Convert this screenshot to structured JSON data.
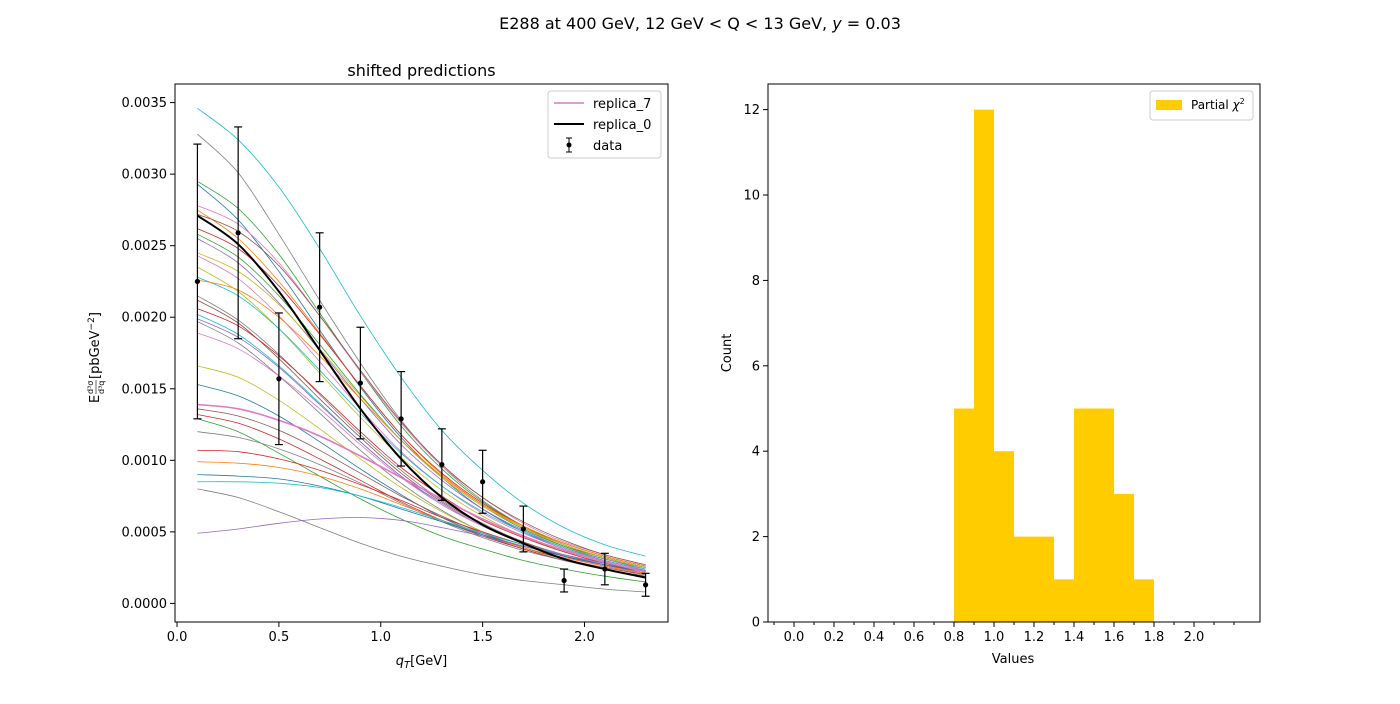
{
  "figure": {
    "suptitle_prefix": "E288  at 400 GeV, 12 GeV < Q < 13 GeV, ",
    "suptitle_var": "y",
    "suptitle_suffix": " = 0.03"
  },
  "chart_data": [
    {
      "type": "line",
      "title": "shifted predictions",
      "xlabel_var": "q",
      "xlabel_sub": "T",
      "xlabel_unit": "[GeV]",
      "ylabel_base": "E",
      "ylabel_frac_num": "d³σ",
      "ylabel_frac_den": "d³q",
      "ylabel_unit_main": "[pbGeV",
      "ylabel_unit_sup": "−2",
      "ylabel_unit_close": "]",
      "xlim": [
        -0.01,
        2.41
      ],
      "ylim": [
        -0.00013,
        0.00363
      ],
      "xticks": [
        0.0,
        0.5,
        1.0,
        1.5,
        2.0
      ],
      "xtick_labels": [
        "0.0",
        "0.5",
        "1.0",
        "1.5",
        "2.0"
      ],
      "yticks": [
        0.0,
        0.0005,
        0.001,
        0.0015,
        0.002,
        0.0025,
        0.003,
        0.0035
      ],
      "ytick_labels": [
        "0.0000",
        "0.0005",
        "0.0010",
        "0.0015",
        "0.0020",
        "0.0025",
        "0.0030",
        "0.0035"
      ],
      "x": [
        0.1,
        0.3,
        0.5,
        0.7,
        0.9,
        1.1,
        1.3,
        1.5,
        1.7,
        1.9,
        2.1,
        2.3
      ],
      "legend_position": "upper-right",
      "legend": [
        {
          "label": "replica_7",
          "color": "#e377c2",
          "kind": "line"
        },
        {
          "label": "replica_0",
          "color": "#000000",
          "kind": "line"
        },
        {
          "label": "data",
          "color": "#000000",
          "kind": "errorbar"
        }
      ],
      "data_points": {
        "y": [
          0.00225,
          0.00259,
          0.00157,
          0.00207,
          0.00154,
          0.00129,
          0.00097,
          0.00085,
          0.00052,
          0.00016,
          0.00024,
          0.00013
        ],
        "yerr": [
          0.00096,
          0.00074,
          0.00046,
          0.00052,
          0.00039,
          0.00033,
          0.00025,
          0.00022,
          0.00016,
          8e-05,
          0.00011,
          8e-05
        ]
      },
      "highlight_series": [
        {
          "name": "replica_0",
          "color": "#000000",
          "values": [
            0.00271,
            0.00251,
            0.00218,
            0.00177,
            0.00136,
            0.00101,
            0.00074,
            0.00055,
            0.00042,
            0.00031,
            0.00024,
            0.00018
          ]
        },
        {
          "name": "replica_7",
          "color": "#e377c2",
          "values": [
            0.00139,
            0.00136,
            0.00128,
            0.00117,
            0.00103,
            0.00088,
            0.00073,
            0.00059,
            0.00047,
            0.00037,
            0.00029,
            0.00022
          ]
        }
      ],
      "series": [
        {
          "color": "#17becf",
          "values": [
            0.00346,
            0.00324,
            0.00291,
            0.00248,
            0.00201,
            0.00158,
            0.00121,
            0.00093,
            0.0007,
            0.00053,
            0.00041,
            0.00033
          ]
        },
        {
          "color": "#7f7f7f",
          "values": [
            0.00328,
            0.00301,
            0.00258,
            0.00212,
            0.00168,
            0.00128,
            0.00096,
            0.00072,
            0.00054,
            0.00041,
            0.00032,
            0.00025
          ]
        },
        {
          "color": "#2ca02c",
          "values": [
            0.00295,
            0.00276,
            0.00244,
            0.00203,
            0.00162,
            0.00124,
            0.00094,
            0.00071,
            0.00054,
            0.00041,
            0.00032,
            0.00025
          ]
        },
        {
          "color": "#1f77b4",
          "values": [
            0.00293,
            0.00268,
            0.00232,
            0.00191,
            0.00151,
            0.00116,
            0.00088,
            0.00066,
            0.0005,
            0.00038,
            0.0003,
            0.00023
          ]
        },
        {
          "color": "#e377c2",
          "values": [
            0.00278,
            0.00265,
            0.00238,
            0.00201,
            0.00162,
            0.00126,
            0.00096,
            0.00074,
            0.00056,
            0.00043,
            0.00034,
            0.00027
          ]
        },
        {
          "color": "#ff7f0e",
          "values": [
            0.00275,
            0.00255,
            0.00225,
            0.00189,
            0.00152,
            0.00118,
            0.0009,
            0.00069,
            0.00053,
            0.0004,
            0.00031,
            0.00025
          ]
        },
        {
          "color": "#8c564b",
          "values": [
            0.00272,
            0.0026,
            0.00236,
            0.00201,
            0.00163,
            0.00127,
            0.00097,
            0.00074,
            0.00057,
            0.00044,
            0.00034,
            0.00027
          ]
        },
        {
          "color": "#d62728",
          "values": [
            0.00262,
            0.00248,
            0.00222,
            0.00188,
            0.00152,
            0.00118,
            0.00091,
            0.0007,
            0.00054,
            0.00042,
            0.00033,
            0.00026
          ]
        },
        {
          "color": "#2ca02c",
          "values": [
            0.00258,
            0.00242,
            0.00215,
            0.00181,
            0.00146,
            0.00114,
            0.00088,
            0.00068,
            0.00052,
            0.0004,
            0.00032,
            0.00025
          ]
        },
        {
          "color": "#9467bd",
          "values": [
            0.00255,
            0.00238,
            0.0021,
            0.00177,
            0.00143,
            0.00111,
            0.00086,
            0.00066,
            0.00051,
            0.00039,
            0.00031,
            0.00024
          ]
        },
        {
          "color": "#bcbd22",
          "values": [
            0.00245,
            0.00232,
            0.00209,
            0.00178,
            0.00145,
            0.00114,
            0.00088,
            0.00068,
            0.00053,
            0.00041,
            0.00032,
            0.00025
          ]
        },
        {
          "color": "#e377c2",
          "values": [
            0.00243,
            0.00227,
            0.00201,
            0.00169,
            0.00136,
            0.00106,
            0.00082,
            0.00063,
            0.00049,
            0.00038,
            0.0003,
            0.00023
          ]
        },
        {
          "color": "#bcbd22",
          "values": [
            0.00235,
            0.00218,
            0.00192,
            0.00161,
            0.0013,
            0.00102,
            0.00079,
            0.00061,
            0.00047,
            0.00036,
            0.00028,
            0.00022
          ]
        },
        {
          "color": "#17becf",
          "values": [
            0.00228,
            0.00215,
            0.00192,
            0.00163,
            0.00133,
            0.00105,
            0.00082,
            0.00064,
            0.0005,
            0.00039,
            0.0003,
            0.00024
          ]
        },
        {
          "color": "#ff7f0e",
          "values": [
            0.00226,
            0.00219,
            0.002,
            0.00173,
            0.00143,
            0.00114,
            0.00089,
            0.00069,
            0.00054,
            0.00042,
            0.00033,
            0.00026
          ]
        },
        {
          "color": "#7f7f7f",
          "values": [
            0.00215,
            0.00198,
            0.00174,
            0.00146,
            0.00118,
            0.00093,
            0.00072,
            0.00056,
            0.00043,
            0.00034,
            0.00027,
            0.00021
          ]
        },
        {
          "color": "#8c564b",
          "values": [
            0.00212,
            0.00196,
            0.00171,
            0.00143,
            0.00116,
            0.00091,
            0.00071,
            0.00055,
            0.00043,
            0.00033,
            0.00026,
            0.00021
          ]
        },
        {
          "color": "#d62728",
          "values": [
            0.00206,
            0.00194,
            0.00173,
            0.00147,
            0.0012,
            0.00095,
            0.00075,
            0.00058,
            0.00046,
            0.00036,
            0.00028,
            0.00022
          ]
        },
        {
          "color": "#17becf",
          "values": [
            0.00202,
            0.00188,
            0.00166,
            0.0014,
            0.00113,
            0.00089,
            0.00069,
            0.00054,
            0.00042,
            0.00033,
            0.00026,
            0.0002
          ]
        },
        {
          "color": "#9467bd",
          "values": [
            0.00199,
            0.00186,
            0.00165,
            0.00139,
            0.00113,
            0.00089,
            0.0007,
            0.00054,
            0.00042,
            0.00033,
            0.00026,
            0.0002
          ]
        },
        {
          "color": "#7f7f7f",
          "values": [
            0.00197,
            0.00182,
            0.00159,
            0.00133,
            0.00107,
            0.00084,
            0.00065,
            0.0005,
            0.00039,
            0.00031,
            0.00024,
            0.00019
          ]
        },
        {
          "color": "#e377c2",
          "values": [
            0.00189,
            0.00178,
            0.00159,
            0.00136,
            0.00111,
            0.00088,
            0.00069,
            0.00054,
            0.00042,
            0.00033,
            0.00026,
            0.0002
          ]
        },
        {
          "color": "#bcbd22",
          "values": [
            0.00166,
            0.00158,
            0.00142,
            0.00122,
            0.00101,
            0.00081,
            0.00064,
            0.0005,
            0.00039,
            0.00031,
            0.00024,
            0.00019
          ]
        },
        {
          "color": "#1f77b4",
          "values": [
            0.00153,
            0.00145,
            0.00131,
            0.00113,
            0.00094,
            0.00076,
            0.0006,
            0.00048,
            0.00038,
            0.0003,
            0.00024,
            0.00019
          ]
        },
        {
          "color": "#8c564b",
          "values": [
            0.00136,
            0.00131,
            0.00121,
            0.00107,
            0.00091,
            0.00075,
            0.00061,
            0.00049,
            0.00039,
            0.00031,
            0.00025,
            0.0002
          ]
        },
        {
          "color": "#d62728",
          "values": [
            0.00132,
            0.00126,
            0.00115,
            0.00101,
            0.00086,
            0.00071,
            0.00058,
            0.00047,
            0.00038,
            0.0003,
            0.00024,
            0.00019
          ]
        },
        {
          "color": "#2ca02c",
          "values": [
            0.00129,
            0.0012,
            0.00105,
            0.00089,
            0.00073,
            0.00059,
            0.00047,
            0.00038,
            0.0003,
            0.00024,
            0.00019,
            0.00015
          ]
        },
        {
          "color": "#7f7f7f",
          "values": [
            0.0012,
            0.00116,
            0.00108,
            0.00097,
            0.00084,
            0.0007,
            0.00057,
            0.00046,
            0.00037,
            0.0003,
            0.00024,
            0.00019
          ]
        },
        {
          "color": "#d62728",
          "values": [
            0.00107,
            0.00106,
            0.00101,
            0.00093,
            0.00083,
            0.00072,
            0.0006,
            0.0005,
            0.00041,
            0.00033,
            0.00027,
            0.00022
          ]
        },
        {
          "color": "#ff7f0e",
          "values": [
            0.00099,
            0.00098,
            0.00095,
            0.00089,
            0.0008,
            0.00069,
            0.00058,
            0.00048,
            0.00039,
            0.00032,
            0.00026,
            0.00021
          ]
        },
        {
          "color": "#1f77b4",
          "values": [
            0.0009,
            0.00089,
            0.00087,
            0.00082,
            0.00075,
            0.00066,
            0.00057,
            0.00048,
            0.0004,
            0.00033,
            0.00027,
            0.00022
          ]
        },
        {
          "color": "#17becf",
          "values": [
            0.00085,
            0.00085,
            0.00084,
            0.00081,
            0.00075,
            0.00067,
            0.00058,
            0.00049,
            0.00041,
            0.00034,
            0.00028,
            0.00023
          ]
        },
        {
          "color": "#7f7f7f",
          "values": [
            0.0008,
            0.00074,
            0.00064,
            0.00053,
            0.00042,
            0.00033,
            0.00026,
            0.0002,
            0.00016,
            0.00013,
            0.0001,
            8e-05
          ]
        },
        {
          "color": "#9467bd",
          "values": [
            0.00049,
            0.00052,
            0.00056,
            0.00059,
            0.0006,
            0.00058,
            0.00053,
            0.00047,
            0.0004,
            0.00034,
            0.00028,
            0.00023
          ]
        }
      ]
    },
    {
      "type": "bar",
      "title": "",
      "xlabel": "Values",
      "ylabel": "Count",
      "xlim": [
        -0.13,
        2.33
      ],
      "ylim": [
        0,
        12.6
      ],
      "xticks": [
        0.0,
        0.2,
        0.4,
        0.6,
        0.8,
        1.0,
        1.2,
        1.4,
        1.6,
        1.8,
        2.0
      ],
      "xtick_labels": [
        "0.0",
        "0.2",
        "0.4",
        "0.6",
        "0.8",
        "1.0",
        "1.2",
        "1.4",
        "1.6",
        "1.8",
        "2.0"
      ],
      "xminor_ticks": [
        -0.1,
        0.1,
        0.3,
        0.5,
        0.7,
        0.9,
        1.1,
        1.3,
        1.5,
        1.7,
        1.9,
        2.1,
        2.2
      ],
      "yticks": [
        0,
        2,
        4,
        6,
        8,
        10,
        12
      ],
      "ytick_labels": [
        "0",
        "2",
        "4",
        "6",
        "8",
        "10",
        "12"
      ],
      "bar_color": "#ffcc00",
      "legend_position": "upper-right",
      "legend_label_base": "Partial ",
      "legend_label_var": "χ",
      "legend_label_sup": "2",
      "bins": [
        {
          "x0": 0.8,
          "x1": 0.9,
          "count": 5
        },
        {
          "x0": 0.9,
          "x1": 1.0,
          "count": 12
        },
        {
          "x0": 1.0,
          "x1": 1.1,
          "count": 4
        },
        {
          "x0": 1.1,
          "x1": 1.2,
          "count": 2
        },
        {
          "x0": 1.2,
          "x1": 1.3,
          "count": 2
        },
        {
          "x0": 1.3,
          "x1": 1.4,
          "count": 1
        },
        {
          "x0": 1.4,
          "x1": 1.5,
          "count": 5
        },
        {
          "x0": 1.5,
          "x1": 1.6,
          "count": 5
        },
        {
          "x0": 1.6,
          "x1": 1.7,
          "count": 3
        },
        {
          "x0": 1.7,
          "x1": 1.8,
          "count": 1
        }
      ]
    }
  ]
}
